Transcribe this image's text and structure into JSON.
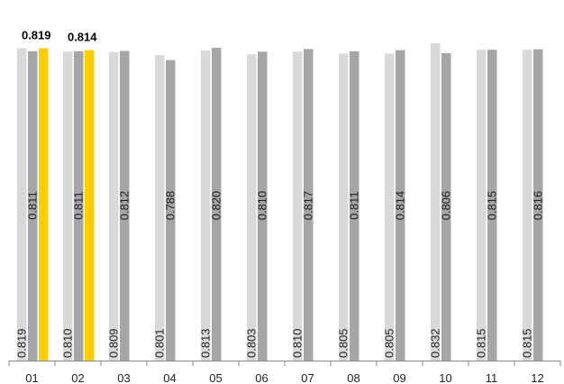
{
  "chart_data": {
    "type": "bar",
    "categories": [
      "01",
      "02",
      "03",
      "04",
      "05",
      "06",
      "07",
      "08",
      "09",
      "10",
      "11",
      "12"
    ],
    "series": [
      {
        "values": [
          0.819,
          0.81,
          0.809,
          0.801,
          0.813,
          0.803,
          0.81,
          0.805,
          0.805,
          0.832,
          0.815,
          0.815
        ],
        "color": "#d9d9d9"
      },
      {
        "values": [
          0.811,
          0.811,
          0.812,
          0.788,
          0.82,
          0.81,
          0.817,
          0.811,
          0.814,
          0.806,
          0.815,
          0.816
        ],
        "color": "#a6a6a6"
      },
      {
        "values": [
          0.819,
          0.814,
          null,
          null,
          null,
          null,
          null,
          null,
          null,
          null,
          null,
          null
        ],
        "color": "#ffcc00",
        "labels_on_top": true
      }
    ],
    "label_format": "0.000",
    "grid": false,
    "legend": "none",
    "ylim": [
      0,
      0.832
    ]
  }
}
